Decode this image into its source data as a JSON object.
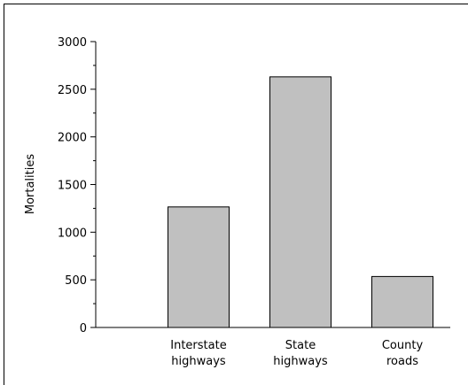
{
  "chart_data": {
    "type": "bar",
    "categories": [
      [
        "Interstate",
        "highways"
      ],
      [
        "State",
        "highways"
      ],
      [
        "County",
        "roads"
      ]
    ],
    "values": [
      1265,
      2630,
      535
    ],
    "ylabel": "Mortalities",
    "xlabel": "",
    "ylim": [
      0,
      3000
    ],
    "yticks": [
      "0",
      "500",
      "1000",
      "1500",
      "2000",
      "2500",
      "3000"
    ],
    "ytick_values": [
      0,
      500,
      1000,
      1500,
      2000,
      2500,
      3000
    ],
    "bar_color": "#c0c0c0",
    "grid": false
  }
}
